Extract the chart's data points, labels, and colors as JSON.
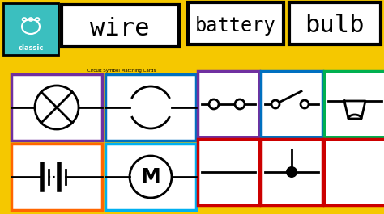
{
  "bg_color": "#f5c800",
  "title_wire": "wire",
  "title_battery": "battery",
  "title_bulb": "bulb",
  "paw_bg_color": "#3bbfbf",
  "classic_text": "classic",
  "card_title_text": "Circuit Symbol Matching Cards",
  "purple": "#7030a0",
  "blue": "#0070c0",
  "green": "#00b050",
  "orange": "#ff6600",
  "teal": "#00b0f0",
  "red": "#cc0000",
  "black": "#000000",
  "white": "#ffffff"
}
